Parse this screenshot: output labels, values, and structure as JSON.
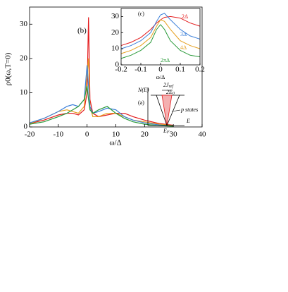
{
  "chart_data": [
    {
      "type": "line",
      "panel_label": "(b)",
      "x_label": "ω/Δ",
      "y_label": "ρ0(ω,T=0)",
      "x": [
        -20,
        -15,
        -10,
        -7,
        -5,
        -3,
        -1,
        0,
        0.5,
        1,
        2,
        4,
        7,
        10,
        13,
        16,
        20,
        25,
        30
      ],
      "series": [
        {
          "color": "#e41a1c",
          "values": [
            1,
            2,
            3.5,
            4,
            4,
            3.5,
            5,
            10,
            32,
            8,
            4,
            3,
            3.5,
            4,
            4,
            3,
            2,
            1,
            0.5
          ]
        },
        {
          "color": "#e6a020",
          "values": [
            1,
            2.5,
            4.5,
            5,
            4.5,
            4,
            6,
            15,
            20,
            6,
            3,
            3,
            4,
            4,
            3,
            2,
            1.5,
            0.8,
            0.4
          ]
        },
        {
          "color": "#3b7fd9",
          "values": [
            1.2,
            2.5,
            4.5,
            6,
            6.5,
            6,
            8,
            18,
            12,
            6,
            4,
            4.5,
            5.5,
            5,
            3,
            2,
            1.2,
            0.6,
            0.3
          ]
        },
        {
          "color": "#2a9a3a",
          "values": [
            0.8,
            1.5,
            3,
            4,
            5,
            6,
            8,
            12,
            8,
            5,
            4,
            5,
            6,
            4,
            2.5,
            1.5,
            0.8,
            0.4,
            0.2
          ]
        }
      ],
      "xlim": [
        -20,
        40
      ],
      "xticks": [
        -20,
        -10,
        0,
        10,
        20,
        30,
        40
      ],
      "ylim": [
        0,
        35
      ],
      "yticks": [
        0,
        10,
        20,
        30
      ]
    },
    {
      "type": "line",
      "panel_label": "(c)",
      "x_label": "ω/Δ",
      "x": [
        -0.2,
        -0.15,
        -0.1,
        -0.05,
        -0.02,
        0,
        0.02,
        0.05,
        0.1,
        0.15,
        0.2
      ],
      "series": [
        {
          "name": "2Δ",
          "color": "#e41a1c",
          "values": [
            12,
            14,
            17,
            22,
            26,
            28,
            29.5,
            30,
            29,
            26,
            24
          ]
        },
        {
          "name": "3Δ",
          "color": "#3b7fd9",
          "values": [
            10,
            12,
            15,
            20,
            27,
            31,
            32,
            28,
            22,
            18,
            16
          ]
        },
        {
          "name": "4Δ",
          "color": "#e6a020",
          "values": [
            7,
            9,
            12,
            17,
            24,
            28,
            27,
            22,
            15,
            12,
            10
          ]
        },
        {
          "name": "2πΔ",
          "color": "#2a9a3a",
          "values": [
            4,
            6,
            9,
            14,
            22,
            25,
            22,
            15,
            9,
            6,
            5
          ]
        }
      ],
      "xlim": [
        -0.2,
        0.2
      ],
      "xticks": [
        -0.2,
        -0.1,
        0,
        0.1,
        0.2
      ],
      "ylim": [
        0,
        35
      ],
      "yticks": [
        0,
        10,
        20,
        30
      ]
    }
  ],
  "diagram": {
    "panel_label": "(a)",
    "axis_y": "N(E)",
    "width_label": "2J",
    "width_sub": "ref",
    "height_label": "2E",
    "height_sub": "0",
    "states": "p states",
    "fermi": "E",
    "fermi_sub": "F",
    "axis_x": "E"
  }
}
